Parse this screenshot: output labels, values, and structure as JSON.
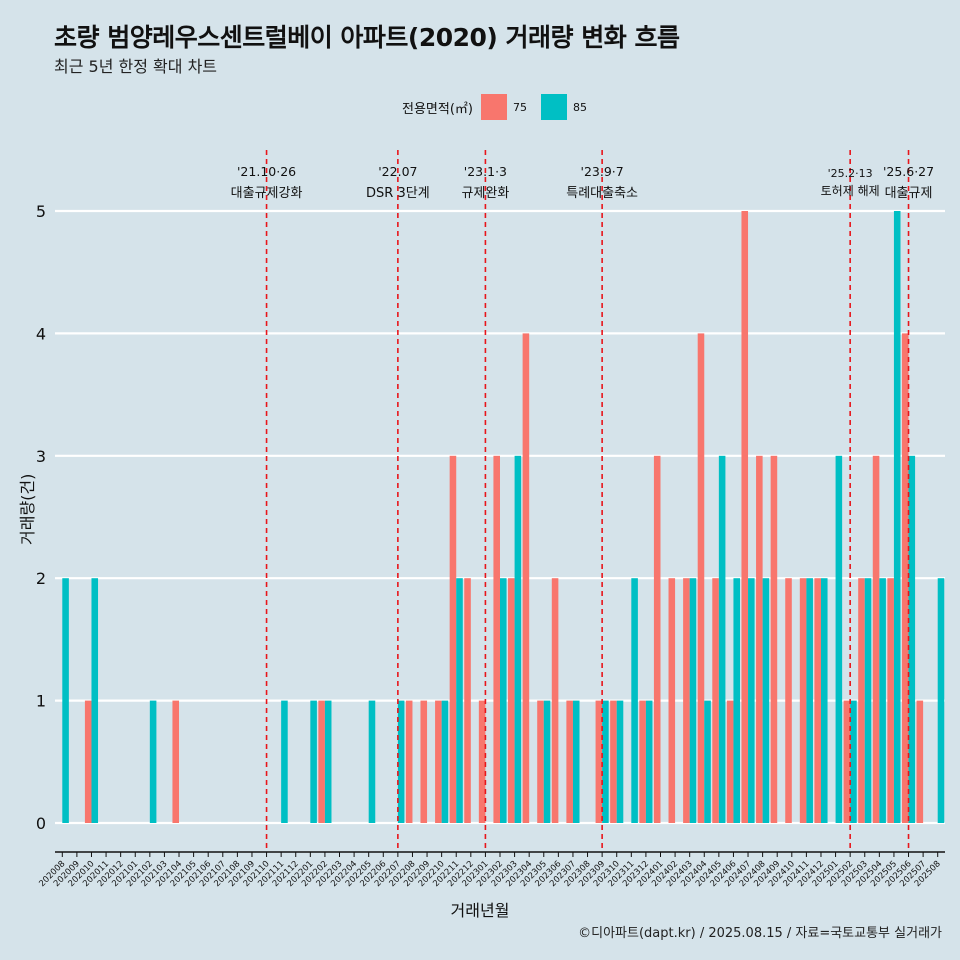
{
  "header": {
    "title": "초량 범양레우스센트럴베이 아파트(2020) 거래량 변화 흐름",
    "subtitle": "최근 5년 한정 확대 차트"
  },
  "legend": {
    "title": "전용면적(㎡)",
    "items": [
      {
        "label": "75",
        "color": "#f8766d"
      },
      {
        "label": "85",
        "color": "#00bfc4"
      }
    ]
  },
  "caption": "©디아파트(dapt.kr) / 2025.08.15 / 자료=국토교통부 실거래가",
  "chart_data": {
    "type": "bar",
    "title": "초량 범양레우스센트럴베이 아파트(2020) 거래량 변화 흐름",
    "xlabel": "거래년월",
    "ylabel": "거래량(건)",
    "ylim": [
      0,
      5
    ],
    "yticks": [
      0,
      1,
      2,
      3,
      4,
      5
    ],
    "categories": [
      "202008",
      "202009",
      "202010",
      "202011",
      "202012",
      "202101",
      "202102",
      "202103",
      "202104",
      "202105",
      "202106",
      "202107",
      "202108",
      "202109",
      "202110",
      "202111",
      "202112",
      "202201",
      "202202",
      "202203",
      "202204",
      "202205",
      "202206",
      "202207",
      "202208",
      "202209",
      "202210",
      "202211",
      "202212",
      "202301",
      "202302",
      "202303",
      "202304",
      "202305",
      "202306",
      "202307",
      "202308",
      "202309",
      "202310",
      "202311",
      "202312",
      "202401",
      "202402",
      "202403",
      "202404",
      "202405",
      "202406",
      "202407",
      "202408",
      "202409",
      "202410",
      "202411",
      "202412",
      "202501",
      "202502",
      "202503",
      "202504",
      "202505",
      "202506",
      "202507",
      "202508"
    ],
    "series": [
      {
        "name": "75",
        "color": "#f8766d",
        "values": [
          0,
          0,
          1,
          0,
          0,
          0,
          0,
          0,
          1,
          0,
          0,
          0,
          0,
          0,
          0,
          0,
          0,
          0,
          1,
          0,
          0,
          0,
          0,
          0,
          1,
          1,
          1,
          3,
          2,
          1,
          3,
          2,
          4,
          1,
          2,
          1,
          0,
          1,
          1,
          0,
          1,
          3,
          2,
          2,
          4,
          2,
          1,
          5,
          3,
          3,
          2,
          2,
          2,
          0,
          1,
          2,
          3,
          2,
          4,
          1,
          0
        ]
      },
      {
        "name": "85",
        "color": "#00bfc4",
        "values": [
          2,
          0,
          2,
          0,
          0,
          0,
          1,
          0,
          0,
          0,
          0,
          0,
          0,
          0,
          0,
          1,
          0,
          1,
          1,
          0,
          0,
          1,
          0,
          1,
          0,
          0,
          1,
          2,
          0,
          0,
          2,
          3,
          0,
          1,
          0,
          1,
          0,
          1,
          1,
          2,
          1,
          0,
          0,
          2,
          1,
          3,
          2,
          2,
          2,
          0,
          0,
          2,
          2,
          3,
          1,
          2,
          2,
          5,
          3,
          0,
          2
        ]
      }
    ],
    "events": [
      {
        "date": "'21.10·26",
        "label": "대출규제강화",
        "index": 14
      },
      {
        "date": "'22.07",
        "label": "DSR 3단계",
        "index": 23
      },
      {
        "date": "'23.1·3",
        "label": "규제완화",
        "index": 29
      },
      {
        "date": "'23.9·7",
        "label": "특례대출축소",
        "index": 37
      },
      {
        "date": "'25.2·13",
        "label": "토허제 해제",
        "index": 54
      },
      {
        "date": "'25.6·27",
        "label": "대출규제",
        "index": 58
      }
    ]
  }
}
